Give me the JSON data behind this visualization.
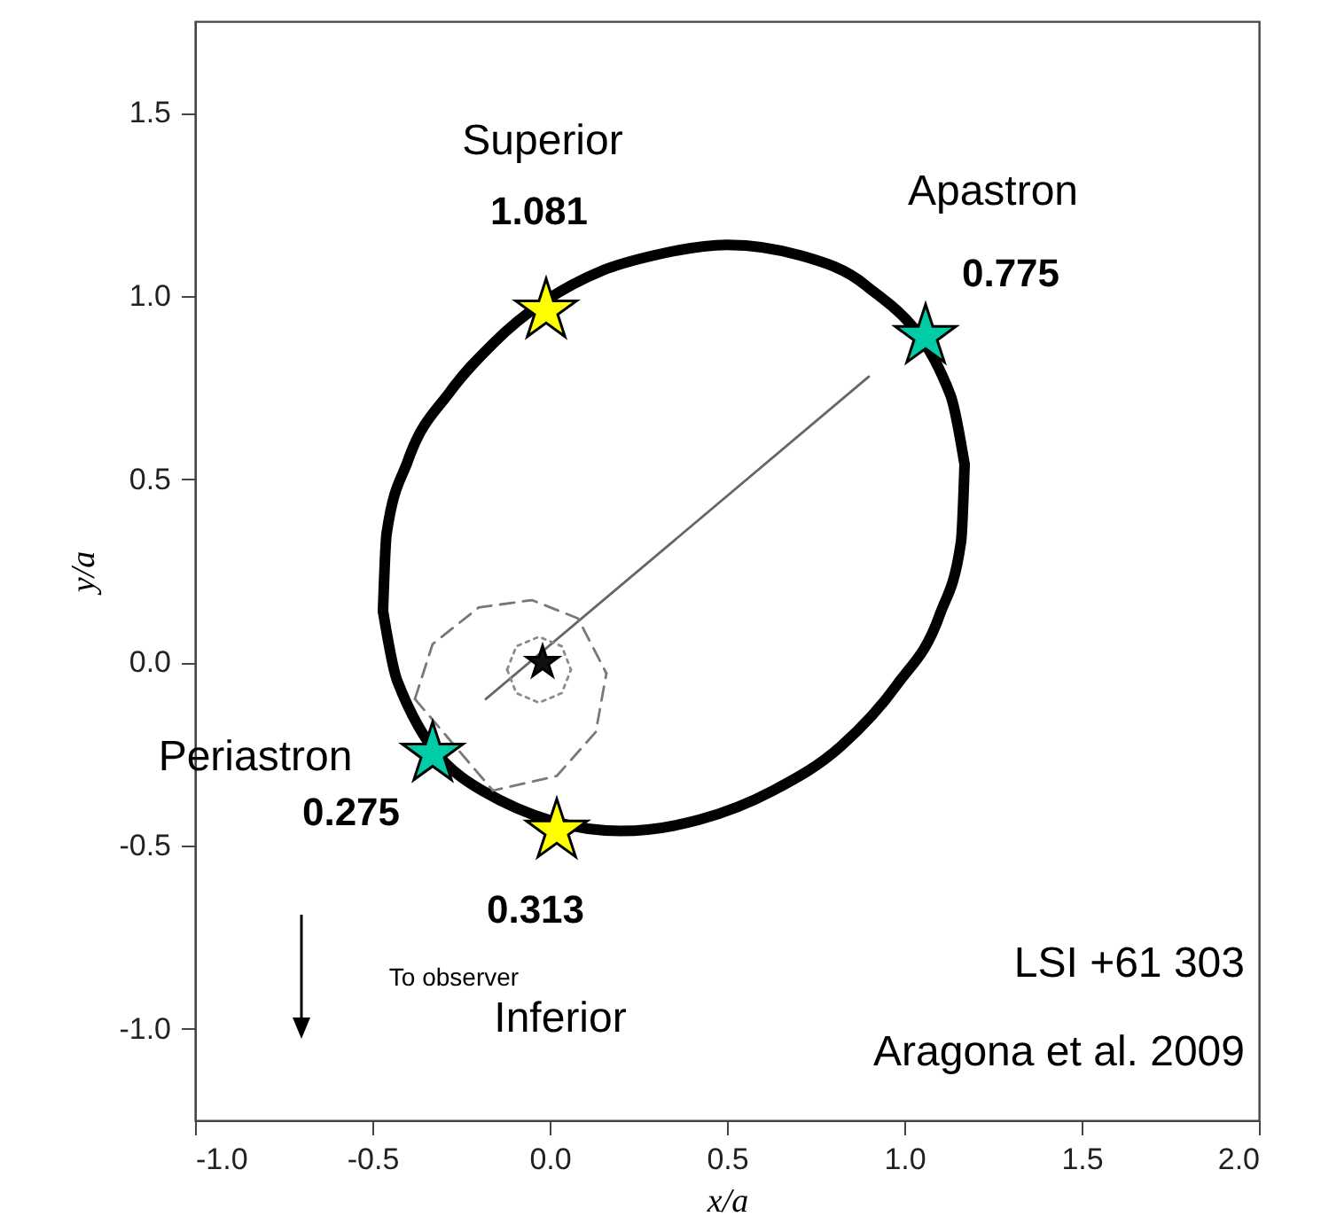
{
  "chart_data": {
    "type": "line",
    "xlabel": "x/a",
    "ylabel": "y/a",
    "xlim": [
      -1.0,
      2.0
    ],
    "ylim": [
      -1.25,
      1.75
    ],
    "xticks": [
      {
        "value": -1.0,
        "label": "-1.0"
      },
      {
        "value": -0.5,
        "label": "-0.5"
      },
      {
        "value": 0,
        "label": "0.0"
      },
      {
        "value": 0.5,
        "label": "0.5"
      },
      {
        "value": 1.0,
        "label": "1.0"
      },
      {
        "value": 1.5,
        "label": "1.5"
      },
      {
        "value": 2.0,
        "label": "2.0"
      }
    ],
    "yticks": [
      {
        "value": -1.0,
        "label": "-1.0"
      },
      {
        "value": -0.5,
        "label": "-0.5"
      },
      {
        "value": 0,
        "label": "0.0"
      },
      {
        "value": 0.5,
        "label": "0.5"
      },
      {
        "value": 1.0,
        "label": "1.0"
      },
      {
        "value": 1.5,
        "label": "1.5"
      }
    ],
    "grid": false,
    "series": [
      {
        "color": "#000000",
        "line_style": "solid",
        "x": [
          -0.47,
          -0.46,
          -0.4,
          -0.28,
          -0.16,
          0.15,
          0.29,
          0.5,
          0.71,
          0.89,
          1.13,
          1.17
        ],
        "values": [
          0.14,
          0.35,
          0.55,
          0.74,
          0.87,
          1.07,
          1.11,
          1.14,
          1.11,
          1.03,
          0.73,
          0.54
        ]
      },
      {
        "color": "#020202",
        "line_style": "solid",
        "x": [
          -0.47,
          -0.43,
          -0.19,
          0.2,
          0.42,
          0.63,
          0.82,
          0.98,
          1.1,
          1.16,
          1.17
        ],
        "values": [
          0.14,
          -0.05,
          -0.35,
          -0.46,
          -0.43,
          -0.35,
          -0.23,
          -0.06,
          0.13,
          0.33,
          0.54
        ]
      },
      {
        "color": "#666666",
        "line_style": "solid",
        "x": [
          -0.18,
          0.9
        ],
        "values": [
          -0.1,
          0.78
        ]
      },
      {
        "color": "#777777",
        "line_style": "dashed",
        "x": [
          -0.38,
          -0.33,
          -0.2,
          -0.05,
          0.08,
          0.16
        ],
        "values": [
          -0.1,
          0.05,
          0.15,
          0.17,
          0.12,
          -0.03
        ]
      },
      {
        "color": "#797979",
        "line_style": "dashed",
        "x": [
          -0.38,
          -0.16,
          0.02,
          0.13,
          0.16
        ],
        "values": [
          -0.1,
          -0.35,
          -0.31,
          -0.19,
          -0.03
        ]
      },
      {
        "type": "scatter",
        "marker": "star",
        "color": "#ffff00",
        "x": [
          -0.01,
          0.02
        ],
        "values": [
          0.96,
          -0.46
        ]
      },
      {
        "type": "scatter",
        "marker": "star",
        "color": "#00cca8",
        "x": [
          1.06,
          -0.33
        ],
        "values": [
          0.89,
          -0.25
        ]
      },
      {
        "type": "scatter",
        "marker": "star",
        "color": "#111111",
        "x": [
          -0.02
        ],
        "values": [
          0.0
        ]
      },
      {
        "color": "#8a8a8a",
        "line_style": "dotted",
        "x": [
          -0.12,
          -0.094,
          -0.03,
          0.034,
          0.06
        ],
        "values": [
          -0.02,
          0.044,
          0.07,
          0.044,
          -0.02
        ]
      },
      {
        "color": "#8c8c8c",
        "line_style": "dotted",
        "x": [
          -0.12,
          -0.094,
          -0.03,
          0.034,
          0.06
        ],
        "values": [
          -0.02,
          -0.084,
          -0.11,
          -0.084,
          -0.02
        ]
      }
    ],
    "annotations": [
      "Superior",
      {
        "text": "1.081",
        "x": -0.01,
        "y": 0.96
      },
      {
        "text": "Apastron",
        "x": 1.06,
        "y": 0.89
      },
      {
        "text": "0.775",
        "x": 1.06,
        "y": 0.89
      },
      {
        "text": "Periastron",
        "x": -0.33,
        "y": -0.25
      },
      {
        "text": "0.275",
        "x": -0.33,
        "y": -0.25
      },
      {
        "text": "0.313",
        "x": 0.02,
        "y": -0.46
      },
      "To observer",
      "Inferior",
      "LSI +61 303",
      "Aragona et al. 2009"
    ]
  }
}
